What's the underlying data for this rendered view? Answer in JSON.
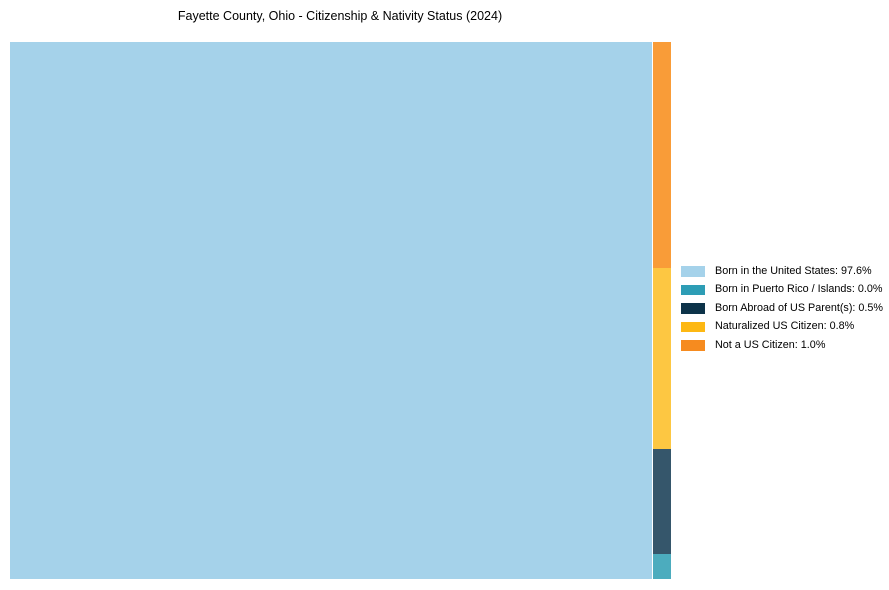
{
  "title": "Fayette County, Ohio - Citizenship & Nativity Status (2024)",
  "chart_data": {
    "type": "treemap",
    "title": "Fayette County, Ohio - Citizenship & Nativity Status (2024)",
    "unit": "%",
    "legend_position": "right",
    "items": [
      {
        "label": "Born in the United States",
        "value": 97.6,
        "display": "Born in the United States: 97.6%",
        "legend_color": "#a5d2ea",
        "fill": "#a5d2ea"
      },
      {
        "label": "Born in Puerto Rico / Islands",
        "value": 0.0,
        "display": "Born in Puerto Rico / Islands: 0.0%",
        "legend_color": "#2d9db5",
        "fill": "#4cacbe"
      },
      {
        "label": "Born Abroad of US Parent(s)",
        "value": 0.5,
        "display": "Born Abroad of US Parent(s): 0.5%",
        "legend_color": "#0d3349",
        "fill": "#35566b"
      },
      {
        "label": "Naturalized US Citizen",
        "value": 0.8,
        "display": "Naturalized US Citizen: 0.8%",
        "legend_color": "#fdb813",
        "fill": "#fdc742"
      },
      {
        "label": "Not a US Citizen",
        "value": 1.0,
        "display": "Not a US Citizen: 1.0%",
        "legend_color": "#f68b1f",
        "fill": "#f99c38"
      }
    ],
    "layout": {
      "main_rect_label": "Born in the United States",
      "side_strip_top_to_bottom": [
        {
          "label": "Not a US Citizen",
          "fill": "#f99c38",
          "height_pct": 42.1
        },
        {
          "label": "Naturalized US Citizen",
          "fill": "#fdc742",
          "height_pct": 33.7
        },
        {
          "label": "Born Abroad of US Parent(s)",
          "fill": "#35566b",
          "height_pct": 19.6
        },
        {
          "label": "Born in Puerto Rico / Islands",
          "fill": "#4cacbe",
          "height_pct": 4.6
        }
      ]
    }
  }
}
